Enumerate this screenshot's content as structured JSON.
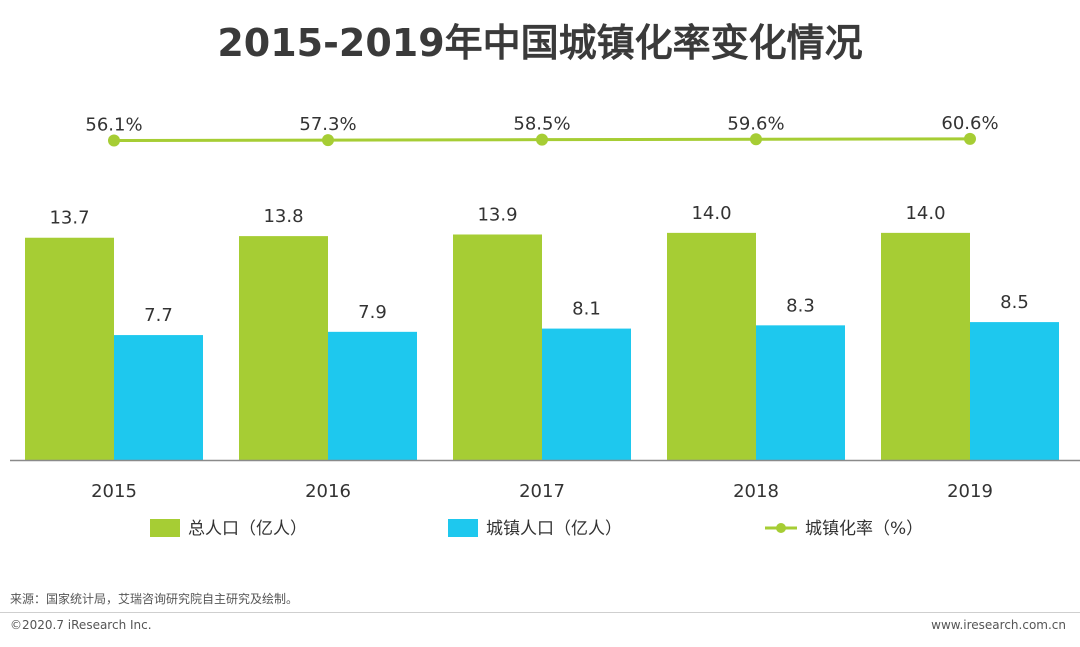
{
  "title": "2015-2019年中国城镇化率变化情况",
  "chart_data": {
    "type": "bar",
    "title": "2015-2019年中国城镇化率变化情况",
    "categories": [
      "2015",
      "2016",
      "2017",
      "2018",
      "2019"
    ],
    "series": [
      {
        "name": "总人口（亿人）",
        "kind": "bar",
        "color": "#a6cd34",
        "values": [
          13.7,
          13.8,
          13.9,
          14.0,
          14.0
        ],
        "labels": [
          "13.7",
          "13.8",
          "13.9",
          "14.0",
          "14.0"
        ]
      },
      {
        "name": "城镇人口（亿人）",
        "kind": "bar",
        "color": "#1ec8ee",
        "values": [
          7.7,
          7.9,
          8.1,
          8.3,
          8.5
        ],
        "labels": [
          "7.7",
          "7.9",
          "8.1",
          "8.3",
          "8.5"
        ]
      },
      {
        "name": "城镇化率（%）",
        "kind": "line",
        "color": "#a6cd34",
        "values": [
          56.1,
          57.3,
          58.5,
          59.6,
          60.6
        ],
        "labels": [
          "56.1%",
          "57.3%",
          "58.5%",
          "59.6%",
          "60.6%"
        ]
      }
    ],
    "bar_ylim": [
      0,
      14.3
    ],
    "line_ylim": [
      0,
      100
    ],
    "xlabel": "",
    "ylabel": "",
    "legend_position": "bottom"
  },
  "footer": {
    "source": "来源：国家统计局，艾瑞咨询研究院自主研究及绘制。",
    "copyright": "©2020.7 iResearch Inc.",
    "website": "www.iresearch.com.cn"
  }
}
